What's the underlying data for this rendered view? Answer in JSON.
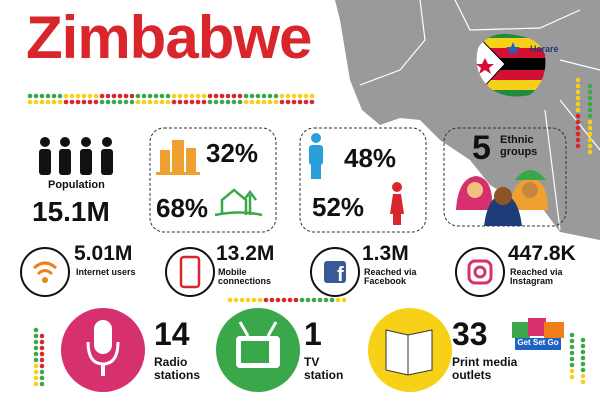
{
  "header": {
    "title": "Zimbabwe"
  },
  "map": {
    "capital": "Harare"
  },
  "population": {
    "label": "Population",
    "value": "15.1M"
  },
  "urban_rural": {
    "urban": "32%",
    "rural": "68%"
  },
  "gender": {
    "male": "48%",
    "female": "52%"
  },
  "ethnic": {
    "value": "5",
    "label": "Ethnic groups"
  },
  "digital": [
    {
      "value": "5.01M",
      "label": "Internet users"
    },
    {
      "value": "13.2M",
      "label": "Mobile connections"
    },
    {
      "value": "1.3M",
      "label": "Reached via Facebook"
    },
    {
      "value": "447.8K",
      "label": "Reached via Instagram"
    }
  ],
  "media": [
    {
      "value": "14",
      "label": "Radio stations"
    },
    {
      "value": "1",
      "label": "TV station"
    },
    {
      "value": "33",
      "label": "Print media outlets"
    }
  ],
  "logo": {
    "text": "Get Set Go"
  }
}
